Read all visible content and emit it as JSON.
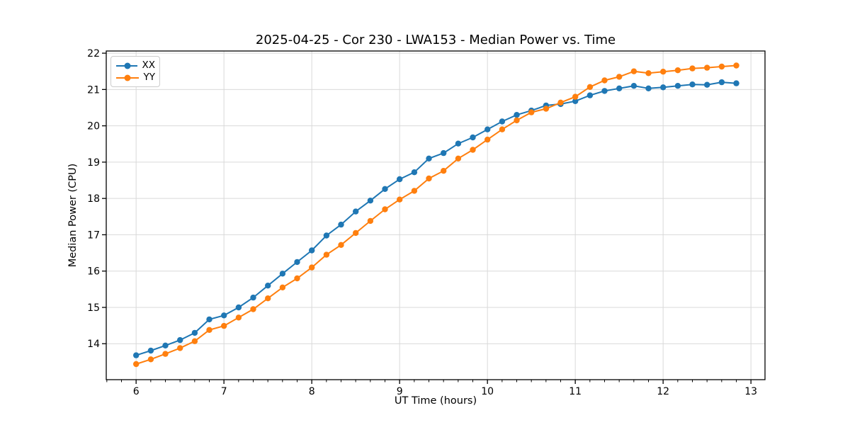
{
  "chart_data": {
    "type": "line",
    "title": "2025-04-25 - Cor 230 - LWA153 - Median Power vs. Time",
    "xlabel": "UT Time (hours)",
    "ylabel": "Median Power (CPU)",
    "xlim": [
      5.66,
      13.16
    ],
    "ylim": [
      13.01,
      22.06
    ],
    "x_ticks": [
      6,
      7,
      8,
      9,
      10,
      11,
      12,
      13
    ],
    "y_ticks": [
      14,
      15,
      16,
      17,
      18,
      19,
      20,
      21,
      22
    ],
    "x_minor_divisions": 6,
    "grid": true,
    "legend_position": "upper left",
    "grid_color": "#d9d9d9",
    "axis_color": "#000000",
    "x": [
      6.0,
      6.167,
      6.333,
      6.5,
      6.667,
      6.833,
      7.0,
      7.167,
      7.333,
      7.5,
      7.667,
      7.833,
      8.0,
      8.167,
      8.333,
      8.5,
      8.667,
      8.833,
      9.0,
      9.167,
      9.333,
      9.5,
      9.667,
      9.833,
      10.0,
      10.167,
      10.333,
      10.5,
      10.667,
      10.833,
      11.0,
      11.167,
      11.333,
      11.5,
      11.667,
      11.833,
      12.0,
      12.167,
      12.333,
      12.5,
      12.667,
      12.833
    ],
    "series": [
      {
        "name": "XX",
        "color": "#1f77b4",
        "values": [
          13.68,
          13.81,
          13.95,
          14.1,
          14.3,
          14.67,
          14.78,
          15.0,
          15.27,
          15.6,
          15.93,
          16.25,
          16.57,
          16.98,
          17.28,
          17.64,
          17.94,
          18.26,
          18.53,
          18.72,
          19.1,
          19.25,
          19.51,
          19.68,
          19.9,
          20.12,
          20.3,
          20.42,
          20.56,
          20.6,
          20.68,
          20.84,
          20.96,
          21.03,
          21.1,
          21.03,
          21.06,
          21.1,
          21.14,
          21.13,
          21.2,
          21.17
        ]
      },
      {
        "name": "YY",
        "color": "#ff7f0e",
        "values": [
          13.44,
          13.57,
          13.72,
          13.88,
          14.07,
          14.38,
          14.49,
          14.72,
          14.95,
          15.25,
          15.55,
          15.8,
          16.1,
          16.45,
          16.72,
          17.05,
          17.38,
          17.7,
          17.97,
          18.21,
          18.55,
          18.76,
          19.1,
          19.34,
          19.62,
          19.9,
          20.15,
          20.37,
          20.47,
          20.64,
          20.8,
          21.07,
          21.25,
          21.35,
          21.5,
          21.45,
          21.49,
          21.53,
          21.58,
          21.6,
          21.63,
          21.66
        ]
      }
    ]
  }
}
